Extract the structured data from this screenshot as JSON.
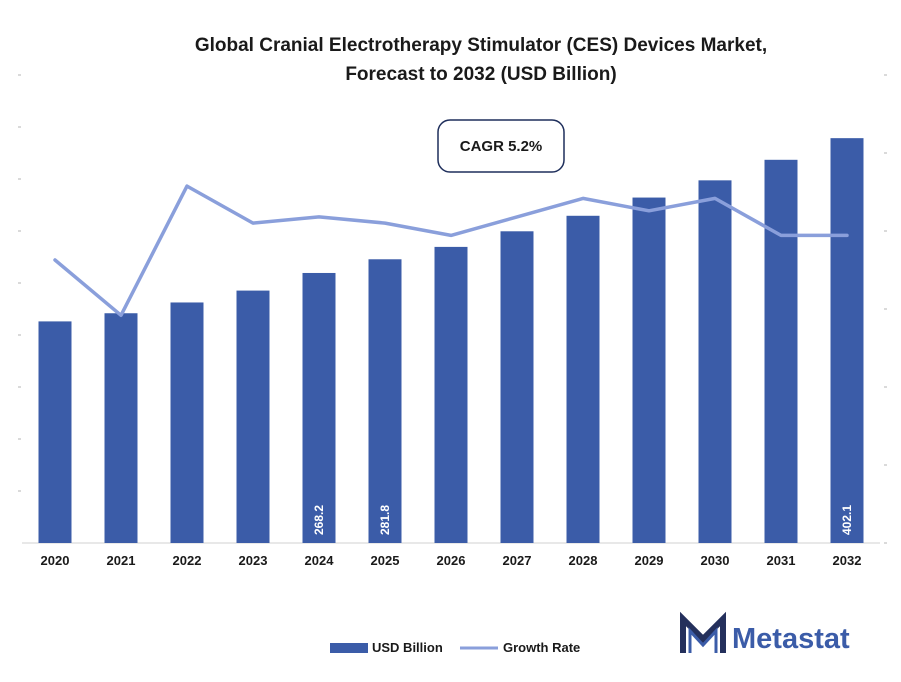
{
  "chart_data": {
    "type": "bar",
    "title_lines": [
      "Global Cranial Electrotherapy Stimulator (CES) Devices Market,",
      "Forecast to 2032 (USD Billion)"
    ],
    "categories": [
      "2020",
      "2021",
      "2022",
      "2023",
      "2024",
      "2025",
      "2026",
      "2027",
      "2028",
      "2029",
      "2030",
      "2031",
      "2032"
    ],
    "series": [
      {
        "name": "USD Billion",
        "type": "bar",
        "color": "#3b5ca8",
        "values": [
          220.1,
          228.2,
          238.9,
          250.7,
          268.2,
          281.8,
          294.1,
          309.6,
          325.0,
          343.1,
          360.2,
          380.6,
          402.1
        ],
        "data_labels": {
          "4": "268.2",
          "5": "281.8",
          "12": "402.1"
        }
      },
      {
        "name": "Growth Rate",
        "type": "line",
        "color": "#8a9fdb",
        "values": [
          4.6,
          3.7,
          5.8,
          5.2,
          5.3,
          5.2,
          5.0,
          5.3,
          5.6,
          5.4,
          5.6,
          5.0,
          5.0
        ]
      }
    ],
    "ylim": [
      0,
      440
    ],
    "y2lim": [
      0,
      7.2
    ],
    "annotation": "CAGR 5.2%",
    "legend_position": "bottom"
  },
  "brand": {
    "name": "Metastat",
    "color": "#3b5ca8",
    "icon": "metastat-m-logo"
  }
}
